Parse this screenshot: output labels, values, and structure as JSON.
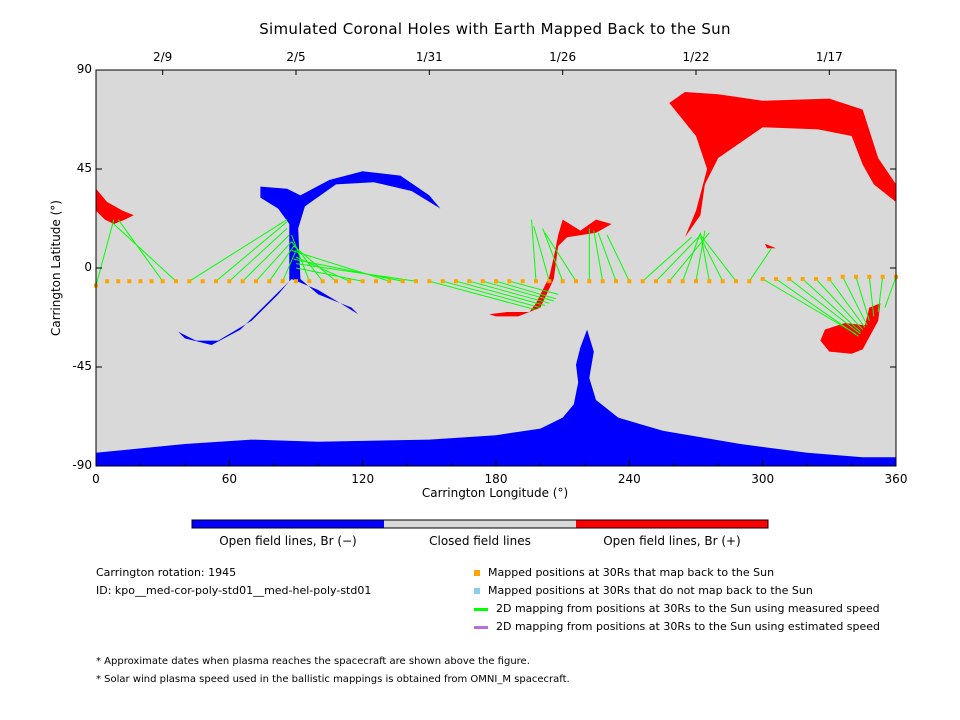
{
  "chart_data": {
    "type": "scatter",
    "title": "Simulated Coronal Holes with Earth Mapped Back to the Sun",
    "xlabel": "Carrington Longitude (°)",
    "ylabel": "Carrington Latitude (°)",
    "xlim": [
      0,
      360
    ],
    "ylim": [
      -90,
      90
    ],
    "x_ticks": [
      0,
      60,
      120,
      180,
      240,
      300,
      360
    ],
    "y_ticks": [
      -90,
      -45,
      0,
      45,
      90
    ],
    "top_axis": {
      "dates": [
        {
          "label": "2/9",
          "lon": 30
        },
        {
          "label": "2/5",
          "lon": 90
        },
        {
          "label": "1/31",
          "lon": 150
        },
        {
          "label": "1/26",
          "lon": 210
        },
        {
          "label": "1/22",
          "lon": 270
        },
        {
          "label": "1/17",
          "lon": 330
        }
      ]
    },
    "colors": {
      "closed": "#d9d9d9",
      "open_negative": "#0000ff",
      "open_positive": "#ff0000",
      "mapped_points": "#ffa500",
      "unmapped_points": "#87ceeb",
      "measured_speed_lines": "#00ff00",
      "estimated_speed_lines": "#b070e0"
    },
    "coronal_holes": [
      {
        "polarity": "negative",
        "region": "south polar hole",
        "lon_range": [
          0,
          360
        ],
        "lat_range": [
          -90,
          -27
        ]
      },
      {
        "polarity": "negative",
        "region": "mid-latitude arc",
        "lon_range": [
          37,
          155
        ],
        "lat_range": [
          -35,
          44
        ]
      },
      {
        "polarity": "positive",
        "region": "north mid hole",
        "lon_range": [
          258,
          360
        ],
        "lat_range": [
          14,
          80
        ]
      },
      {
        "polarity": "positive",
        "region": "west limb hole",
        "lon_range": [
          0,
          17
        ],
        "lat_range": [
          20,
          36
        ]
      },
      {
        "polarity": "positive",
        "region": "equatorial hole",
        "lon_range": [
          177,
          232
        ],
        "lat_range": [
          -22,
          24
        ]
      },
      {
        "polarity": "positive",
        "region": "southern hole",
        "lon_range": [
          325,
          353
        ],
        "lat_range": [
          -39,
          -16
        ]
      },
      {
        "polarity": "positive",
        "region": "small spot",
        "lon_range": [
          301,
          306
        ],
        "lat_range": [
          9,
          11
        ]
      }
    ],
    "mapped_points": [
      {
        "lon": 0,
        "lat": -8
      },
      {
        "lon": 5,
        "lat": -6
      },
      {
        "lon": 10,
        "lat": -6
      },
      {
        "lon": 15,
        "lat": -6
      },
      {
        "lon": 20,
        "lat": -6
      },
      {
        "lon": 25,
        "lat": -6
      },
      {
        "lon": 30,
        "lat": -6
      },
      {
        "lon": 36,
        "lat": -6
      },
      {
        "lon": 42,
        "lat": -6
      },
      {
        "lon": 48,
        "lat": -6
      },
      {
        "lon": 54,
        "lat": -6
      },
      {
        "lon": 60,
        "lat": -6
      },
      {
        "lon": 66,
        "lat": -6
      },
      {
        "lon": 72,
        "lat": -6
      },
      {
        "lon": 78,
        "lat": -6
      },
      {
        "lon": 84,
        "lat": -6
      },
      {
        "lon": 90,
        "lat": -6
      },
      {
        "lon": 96,
        "lat": -6
      },
      {
        "lon": 102,
        "lat": -6
      },
      {
        "lon": 108,
        "lat": -6
      },
      {
        "lon": 114,
        "lat": -6
      },
      {
        "lon": 120,
        "lat": -6
      },
      {
        "lon": 126,
        "lat": -6
      },
      {
        "lon": 132,
        "lat": -6
      },
      {
        "lon": 138,
        "lat": -6
      },
      {
        "lon": 144,
        "lat": -6
      },
      {
        "lon": 150,
        "lat": -6
      },
      {
        "lon": 156,
        "lat": -6
      },
      {
        "lon": 162,
        "lat": -6
      },
      {
        "lon": 168,
        "lat": -6
      },
      {
        "lon": 174,
        "lat": -6
      },
      {
        "lon": 180,
        "lat": -6
      },
      {
        "lon": 186,
        "lat": -6
      },
      {
        "lon": 192,
        "lat": -6
      },
      {
        "lon": 198,
        "lat": -6
      },
      {
        "lon": 204,
        "lat": -6
      },
      {
        "lon": 210,
        "lat": -6
      },
      {
        "lon": 216,
        "lat": -6
      },
      {
        "lon": 222,
        "lat": -6
      },
      {
        "lon": 228,
        "lat": -6
      },
      {
        "lon": 234,
        "lat": -6
      },
      {
        "lon": 240,
        "lat": -6
      },
      {
        "lon": 246,
        "lat": -6
      },
      {
        "lon": 252,
        "lat": -6
      },
      {
        "lon": 258,
        "lat": -6
      },
      {
        "lon": 264,
        "lat": -6
      },
      {
        "lon": 270,
        "lat": -6
      },
      {
        "lon": 276,
        "lat": -6
      },
      {
        "lon": 282,
        "lat": -6
      },
      {
        "lon": 288,
        "lat": -6
      },
      {
        "lon": 294,
        "lat": -6
      },
      {
        "lon": 300,
        "lat": -5
      },
      {
        "lon": 306,
        "lat": -5
      },
      {
        "lon": 312,
        "lat": -5
      },
      {
        "lon": 318,
        "lat": -5
      },
      {
        "lon": 324,
        "lat": -5
      },
      {
        "lon": 330,
        "lat": -5
      },
      {
        "lon": 336,
        "lat": -4
      },
      {
        "lon": 342,
        "lat": -4
      },
      {
        "lon": 348,
        "lat": -4
      },
      {
        "lon": 354,
        "lat": -4
      },
      {
        "lon": 360,
        "lat": -4
      }
    ],
    "mappings": [
      {
        "from": [
          0,
          -8
        ],
        "to": [
          8,
          22
        ]
      },
      {
        "from": [
          30,
          -6
        ],
        "to": [
          10,
          22
        ]
      },
      {
        "from": [
          36,
          -6
        ],
        "to": [
          8,
          20
        ]
      },
      {
        "from": [
          42,
          -6
        ],
        "to": [
          86,
          22
        ]
      },
      {
        "from": [
          54,
          -6
        ],
        "to": [
          86,
          21
        ]
      },
      {
        "from": [
          60,
          -6
        ],
        "to": [
          86,
          18
        ]
      },
      {
        "from": [
          66,
          -6
        ],
        "to": [
          87,
          15
        ]
      },
      {
        "from": [
          72,
          -6
        ],
        "to": [
          88,
          12
        ]
      },
      {
        "from": [
          78,
          -6
        ],
        "to": [
          89,
          10
        ]
      },
      {
        "from": [
          84,
          -6
        ],
        "to": [
          90,
          8
        ]
      },
      {
        "from": [
          96,
          -6
        ],
        "to": [
          88,
          15
        ]
      },
      {
        "from": [
          102,
          -6
        ],
        "to": [
          88,
          12
        ]
      },
      {
        "from": [
          108,
          -6
        ],
        "to": [
          89,
          10
        ]
      },
      {
        "from": [
          114,
          -6
        ],
        "to": [
          90,
          5
        ]
      },
      {
        "from": [
          120,
          -6
        ],
        "to": [
          90,
          0
        ]
      },
      {
        "from": [
          132,
          -6
        ],
        "to": [
          88,
          8
        ]
      },
      {
        "from": [
          138,
          -6
        ],
        "to": [
          89,
          4
        ]
      },
      {
        "from": [
          144,
          -6
        ],
        "to": [
          90,
          2
        ]
      },
      {
        "from": [
          150,
          -6
        ],
        "to": [
          198,
          -19
        ]
      },
      {
        "from": [
          156,
          -6
        ],
        "to": [
          200,
          -18
        ]
      },
      {
        "from": [
          162,
          -6
        ],
        "to": [
          202,
          -17
        ]
      },
      {
        "from": [
          168,
          -6
        ],
        "to": [
          204,
          -16
        ]
      },
      {
        "from": [
          174,
          -6
        ],
        "to": [
          206,
          -15
        ]
      },
      {
        "from": [
          180,
          -6
        ],
        "to": [
          207,
          -14
        ]
      },
      {
        "from": [
          186,
          -6
        ],
        "to": [
          208,
          -12
        ]
      },
      {
        "from": [
          198,
          -6
        ],
        "to": [
          196,
          22
        ]
      },
      {
        "from": [
          204,
          -6
        ],
        "to": [
          197,
          19
        ]
      },
      {
        "from": [
          210,
          -6
        ],
        "to": [
          201,
          18
        ]
      },
      {
        "from": [
          216,
          -6
        ],
        "to": [
          202,
          16
        ]
      },
      {
        "from": [
          222,
          -6
        ],
        "to": [
          222,
          18
        ]
      },
      {
        "from": [
          228,
          -6
        ],
        "to": [
          224,
          17
        ]
      },
      {
        "from": [
          234,
          -6
        ],
        "to": [
          226,
          16
        ]
      },
      {
        "from": [
          240,
          -6
        ],
        "to": [
          230,
          15
        ]
      },
      {
        "from": [
          246,
          -6
        ],
        "to": [
          268,
          14
        ]
      },
      {
        "from": [
          252,
          -6
        ],
        "to": [
          272,
          15
        ]
      },
      {
        "from": [
          258,
          -6
        ],
        "to": [
          276,
          16
        ]
      },
      {
        "from": [
          264,
          -6
        ],
        "to": [
          272,
          16
        ]
      },
      {
        "from": [
          270,
          -6
        ],
        "to": [
          274,
          17
        ]
      },
      {
        "from": [
          276,
          -6
        ],
        "to": [
          272,
          16
        ]
      },
      {
        "from": [
          282,
          -6
        ],
        "to": [
          272,
          14
        ]
      },
      {
        "from": [
          288,
          -6
        ],
        "to": [
          272,
          15
        ]
      },
      {
        "from": [
          294,
          -6
        ],
        "to": [
          304,
          9
        ]
      },
      {
        "from": [
          300,
          -5
        ],
        "to": [
          342,
          -30
        ]
      },
      {
        "from": [
          306,
          -5
        ],
        "to": [
          343,
          -31
        ]
      },
      {
        "from": [
          312,
          -5
        ],
        "to": [
          344,
          -30
        ]
      },
      {
        "from": [
          318,
          -5
        ],
        "to": [
          344,
          -29
        ]
      },
      {
        "from": [
          324,
          -5
        ],
        "to": [
          345,
          -28
        ]
      },
      {
        "from": [
          330,
          -5
        ],
        "to": [
          346,
          -27
        ]
      },
      {
        "from": [
          336,
          -4
        ],
        "to": [
          347,
          -26
        ]
      },
      {
        "from": [
          342,
          -4
        ],
        "to": [
          348,
          -24
        ]
      },
      {
        "from": [
          348,
          -4
        ],
        "to": [
          350,
          -22
        ]
      },
      {
        "from": [
          354,
          -4
        ],
        "to": [
          352,
          -20
        ]
      },
      {
        "from": [
          360,
          -4
        ],
        "to": [
          355,
          -18
        ]
      }
    ]
  },
  "colorbar": {
    "negative_label": "Open field lines, Br (−)",
    "closed_label": "Closed field lines",
    "positive_label": "Open field lines, Br (+)"
  },
  "info": {
    "rotation": "Carrington rotation: 1945",
    "id": "ID: kpo__med-cor-poly-std01__med-hel-poly-std01"
  },
  "legend": [
    {
      "kind": "square",
      "color": "#ffa500",
      "label": "Mapped positions at 30Rs that map back to the Sun"
    },
    {
      "kind": "square",
      "color": "#87ceeb",
      "label": "Mapped positions at 30Rs that do not map back to the Sun"
    },
    {
      "kind": "line",
      "color": "#00ff00",
      "label": "2D mapping from positions at 30Rs to the Sun using measured speed"
    },
    {
      "kind": "line",
      "color": "#b070e0",
      "label": "2D mapping from positions at 30Rs to the Sun using estimated speed"
    }
  ],
  "notes": [
    "* Approximate dates when plasma reaches the spacecraft are shown above the figure.",
    "* Solar wind plasma speed used in the ballistic mappings is obtained from OMNI_M spacecraft."
  ]
}
